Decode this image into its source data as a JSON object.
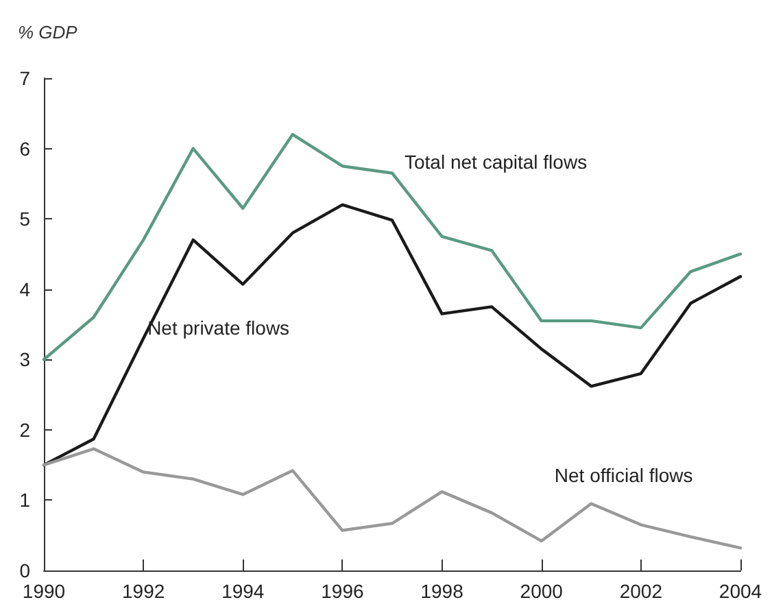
{
  "chart_data": {
    "type": "line",
    "ylabel": "% GDP",
    "x": [
      1990,
      1991,
      1992,
      1993,
      1994,
      1995,
      1996,
      1997,
      1998,
      1999,
      2000,
      2001,
      2002,
      2003,
      2004
    ],
    "series": [
      {
        "name": "Total net capital flows",
        "color": "#5a9a82",
        "values": [
          3.0,
          3.6,
          4.7,
          6.0,
          5.15,
          6.2,
          5.75,
          5.65,
          4.75,
          4.55,
          3.55,
          3.55,
          3.45,
          4.25,
          4.5
        ]
      },
      {
        "name": "Net private flows",
        "color": "#1a1a1a",
        "values": [
          1.5,
          1.87,
          3.3,
          4.7,
          4.07,
          4.8,
          5.2,
          4.98,
          3.65,
          3.75,
          3.15,
          2.62,
          2.8,
          3.8,
          4.18
        ]
      },
      {
        "name": "Net official flows",
        "color": "#999999",
        "values": [
          1.5,
          1.73,
          1.4,
          1.3,
          1.08,
          1.42,
          0.57,
          0.67,
          1.12,
          0.82,
          0.42,
          0.95,
          0.65,
          0.48,
          0.32
        ]
      }
    ],
    "xlim": [
      1990,
      2004
    ],
    "xticks": [
      1990,
      1992,
      1994,
      1996,
      1998,
      2000,
      2002,
      2004
    ],
    "ylim": [
      0,
      7
    ],
    "yticks": [
      0,
      1,
      2,
      3,
      4,
      5,
      6,
      7
    ],
    "grid": false,
    "legend": false,
    "marker": "none",
    "line_style": "solid"
  }
}
